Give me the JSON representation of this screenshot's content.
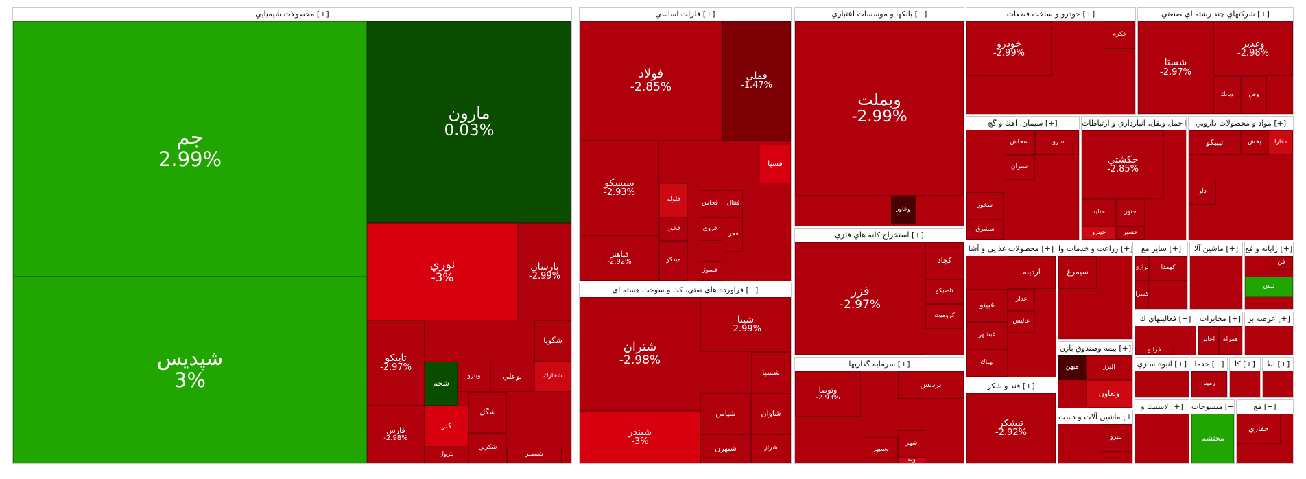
{
  "chart_data": {
    "type": "treemap",
    "title": "",
    "colors": {
      "up_strong": "#21a500",
      "up_mid": "#1b6f08",
      "up_dark": "#0b4d00",
      "flat": "#e0101a",
      "down_light": "#cc0812",
      "down_mid": "#b0000c",
      "down_dark": "#7d0005",
      "down_darkest": "#4a0000"
    },
    "sectors": [
      {
        "name": "محصولات شيميايي [+]",
        "tiles": [
          {
            "symbol": "جم",
            "change": "2.99%",
            "color": "#21a500"
          },
          {
            "symbol": "شپديس",
            "change": "3%",
            "color": "#21a500"
          },
          {
            "symbol": "مارون",
            "change": "0.03%",
            "color": "#0b4d00"
          },
          {
            "symbol": "نوري",
            "change": "-3%",
            "color": "#d8000f"
          },
          {
            "symbol": "پارسان",
            "change": "-2.99%",
            "color": "#b0000c"
          },
          {
            "symbol": "تاپيكو",
            "change": "-2.97%",
            "color": "#b0000c"
          },
          {
            "symbol": "فارس",
            "change": "-2.98%",
            "color": "#b0000c"
          },
          {
            "symbol": "شگويا",
            "change": "",
            "color": "#b0000c"
          },
          {
            "symbol": "شخارك",
            "change": "",
            "color": "#cc0812"
          },
          {
            "symbol": "بوعلي",
            "change": "",
            "color": "#b0000c"
          },
          {
            "symbol": "ويترو",
            "change": "",
            "color": "#b0000c"
          },
          {
            "symbol": "شجم",
            "change": "",
            "color": "#0b4d00"
          },
          {
            "symbol": "كلر",
            "change": "",
            "color": "#d8000f"
          },
          {
            "symbol": "شگل",
            "change": "",
            "color": "#b0000c"
          },
          {
            "symbol": "شكربن",
            "change": "",
            "color": "#b0000c"
          },
          {
            "symbol": "پترول",
            "change": "",
            "color": "#b0000c"
          },
          {
            "symbol": "شبصير",
            "change": "",
            "color": "#b0000c"
          }
        ]
      },
      {
        "name": "فلزات اساسي [+]",
        "tiles": [
          {
            "symbol": "فولاد",
            "change": "-2.85%",
            "color": "#b0000c"
          },
          {
            "symbol": "فملي",
            "change": "-1.47%",
            "color": "#7d0005"
          },
          {
            "symbol": "فسپا",
            "change": "",
            "color": "#d8000f"
          },
          {
            "symbol": "سيسكو",
            "change": "-2.93%",
            "color": "#b0000c"
          },
          {
            "symbol": "فلوله",
            "change": "",
            "color": "#cc0812"
          },
          {
            "symbol": "فخاس",
            "change": "",
            "color": "#b0000c"
          },
          {
            "symbol": "فنتال",
            "change": "",
            "color": "#b0000c"
          },
          {
            "symbol": "فخوز",
            "change": "",
            "color": "#b0000c"
          },
          {
            "symbol": "فروي",
            "change": "",
            "color": "#b0000c"
          },
          {
            "symbol": "فباهنر",
            "change": "-2.92%",
            "color": "#b0000c"
          },
          {
            "symbol": "ميدكو",
            "change": "",
            "color": "#b0000c"
          },
          {
            "symbol": "فسوژ",
            "change": "",
            "color": "#b0000c"
          },
          {
            "symbol": "فجر",
            "change": "",
            "color": "#b0000c"
          }
        ]
      },
      {
        "name": "فراورده هاي نفتي، كك و سوخت هسته اي [+]",
        "tiles": [
          {
            "symbol": "شتران",
            "change": "-2.98%",
            "color": "#b0000c"
          },
          {
            "symbol": "شبندر",
            "change": "-3%",
            "color": "#d8000f"
          },
          {
            "symbol": "شپنا",
            "change": "-2.99%",
            "color": "#b0000c"
          },
          {
            "symbol": "شسپا",
            "change": "",
            "color": "#b0000c"
          },
          {
            "symbol": "شپاس",
            "change": "",
            "color": "#b0000c"
          },
          {
            "symbol": "شاوان",
            "change": "",
            "color": "#b0000c"
          },
          {
            "symbol": "شبهرن",
            "change": "",
            "color": "#b0000c"
          },
          {
            "symbol": "شراز",
            "change": "",
            "color": "#b0000c"
          }
        ]
      },
      {
        "name": "بانكها و موسسات اعتباري [+]",
        "tiles": [
          {
            "symbol": "وبملت",
            "change": "-2.99%",
            "color": "#b0000c"
          },
          {
            "symbol": "وخاور",
            "change": "",
            "color": "#4a0000"
          }
        ]
      },
      {
        "name": "استخراج كانه هاي فلزي [+]",
        "tiles": [
          {
            "symbol": "فزر",
            "change": "-2.97%",
            "color": "#b0000c"
          },
          {
            "symbol": "كچاد",
            "change": "",
            "color": "#b0000c"
          },
          {
            "symbol": "تاصيكو",
            "change": "",
            "color": "#b0000c"
          },
          {
            "symbol": "كروميت",
            "change": "",
            "color": "#b0000c"
          }
        ]
      },
      {
        "name": "سرمايه گذاريها [+]",
        "tiles": [
          {
            "symbol": "وتوصا",
            "change": "-2.93%",
            "color": "#b0000c"
          },
          {
            "symbol": "بردبس",
            "change": "",
            "color": "#b0000c"
          },
          {
            "symbol": "وسبهر",
            "change": "",
            "color": "#b0000c"
          },
          {
            "symbol": "شهر",
            "change": "",
            "color": "#b0000c"
          },
          {
            "symbol": "وبه",
            "change": "",
            "color": "#cc0812"
          }
        ]
      },
      {
        "name": "خودرو و ساخت قطعات [+]",
        "tiles": [
          {
            "symbol": "خودرو",
            "change": "-2.99%",
            "color": "#b0000c"
          },
          {
            "symbol": "خكرم",
            "change": "",
            "color": "#b0000c"
          }
        ]
      },
      {
        "name": "شركتهاي چند رشته اي صنعتي [+]",
        "tiles": [
          {
            "symbol": "شستا",
            "change": "-2.97%",
            "color": "#b0000c"
          },
          {
            "symbol": "وغدير",
            "change": "-2.98%",
            "color": "#b0000c"
          },
          {
            "symbol": "وبانك",
            "change": "",
            "color": "#b0000c"
          },
          {
            "symbol": "وص",
            "change": "",
            "color": "#b0000c"
          }
        ]
      },
      {
        "name": "سيمان، آهك و گچ [+]",
        "tiles": [
          {
            "symbol": "سخاش",
            "change": "",
            "color": "#b0000c"
          },
          {
            "symbol": "سرود",
            "change": "",
            "color": "#b0000c"
          },
          {
            "symbol": "ستران",
            "change": "",
            "color": "#b0000c"
          },
          {
            "symbol": "سخوز",
            "change": "",
            "color": "#b0000c"
          },
          {
            "symbol": "سشرق",
            "change": "",
            "color": "#b0000c"
          }
        ]
      },
      {
        "name": "حمل ونقل، انبارداري و ارتباطات [+]",
        "tiles": [
          {
            "symbol": "حكشتي",
            "change": "-2.85%",
            "color": "#b0000c"
          },
          {
            "symbol": "حتايد",
            "change": "",
            "color": "#b0000c"
          },
          {
            "symbol": "حتور",
            "change": "",
            "color": "#b0000c"
          },
          {
            "symbol": "حپترو",
            "change": "",
            "color": "#cc0812"
          },
          {
            "symbol": "حسير",
            "change": "",
            "color": "#b0000c"
          }
        ]
      },
      {
        "name": "مواد و محصولات دارويي [+]",
        "tiles": [
          {
            "symbol": "دفارا",
            "change": "",
            "color": "#cc0812"
          },
          {
            "symbol": "پخش",
            "change": "",
            "color": "#b0000c"
          },
          {
            "symbol": "تيپيكو",
            "change": "",
            "color": "#b0000c"
          },
          {
            "symbol": "دلر",
            "change": "",
            "color": "#b0000c"
          }
        ]
      },
      {
        "name": "محصولات غذايي و آشا [+]",
        "tiles": [
          {
            "symbol": "آردينه",
            "change": "",
            "color": "#b0000c"
          },
          {
            "symbol": "غدار",
            "change": "",
            "color": "#b0000c"
          },
          {
            "symbol": "غبينو",
            "change": "",
            "color": "#b0000c"
          },
          {
            "symbol": "عاليس",
            "change": "",
            "color": "#b0000c"
          },
          {
            "symbol": "غبشهر",
            "change": "",
            "color": "#b0000c"
          },
          {
            "symbol": "بهپاك",
            "change": "",
            "color": "#b0000c"
          }
        ]
      },
      {
        "name": "قند و شكر [+]",
        "tiles": [
          {
            "symbol": "تبشكر",
            "change": "-2.92%",
            "color": "#b0000c"
          }
        ]
      },
      {
        "name": "زراعت و خدمات وا [+]",
        "tiles": [
          {
            "symbol": "سيمرغ",
            "change": "",
            "color": "#b0000c"
          }
        ]
      },
      {
        "name": "بيمه وصندوق بازن [+]",
        "tiles": [
          {
            "symbol": "البرز",
            "change": "",
            "color": "#b0000c"
          },
          {
            "symbol": "ميهن",
            "change": "",
            "color": "#4a0000"
          },
          {
            "symbol": "وتعاون",
            "change": "",
            "color": "#cc0812"
          }
        ]
      },
      {
        "name": "ماشين آلات و دست [+]",
        "tiles": [
          {
            "symbol": "بنيرو",
            "change": "",
            "color": "#b0000c"
          }
        ]
      },
      {
        "name": "ساير مع [+]",
        "tiles": [
          {
            "symbol": "كهمدا",
            "change": "",
            "color": "#b0000c"
          },
          {
            "symbol": "كرازي",
            "change": "",
            "color": "#b0000c"
          },
          {
            "symbol": "كسرا",
            "change": "",
            "color": "#b0000c"
          }
        ]
      },
      {
        "name": "ماشين آلا [+]",
        "tiles": []
      },
      {
        "name": "رايانه و فع [+]",
        "tiles": [
          {
            "symbol": "فن",
            "change": "",
            "color": "#b0000c"
          },
          {
            "symbol": "تيس",
            "change": "",
            "color": "#21a500"
          }
        ]
      },
      {
        "name": "فعاليتهاي ك [+]",
        "tiles": [
          {
            "symbol": "فرابو",
            "change": "",
            "color": "#b0000c"
          }
        ]
      },
      {
        "name": "مخابرات [+]",
        "tiles": [
          {
            "symbol": "اخابر",
            "change": "",
            "color": "#b0000c"
          },
          {
            "symbol": "همراه",
            "change": "",
            "color": "#b0000c"
          }
        ]
      },
      {
        "name": "عرضه بر [+]",
        "tiles": []
      },
      {
        "name": "انبوه سازي [+]",
        "tiles": []
      },
      {
        "name": "خدما [+]",
        "tiles": [
          {
            "symbol": "رمپنا",
            "change": "",
            "color": "#b0000c"
          }
        ]
      },
      {
        "name": "كا [+]",
        "tiles": []
      },
      {
        "name": "اط [+]",
        "tiles": []
      },
      {
        "name": "لاستيك و [+]",
        "tiles": []
      },
      {
        "name": "منسوجات [+]",
        "tiles": [
          {
            "symbol": "محتشم",
            "change": "",
            "color": "#21a500"
          }
        ]
      },
      {
        "name": "مع [+]",
        "tiles": [
          {
            "symbol": "حفاري",
            "change": "",
            "color": "#b0000c"
          }
        ]
      }
    ]
  }
}
